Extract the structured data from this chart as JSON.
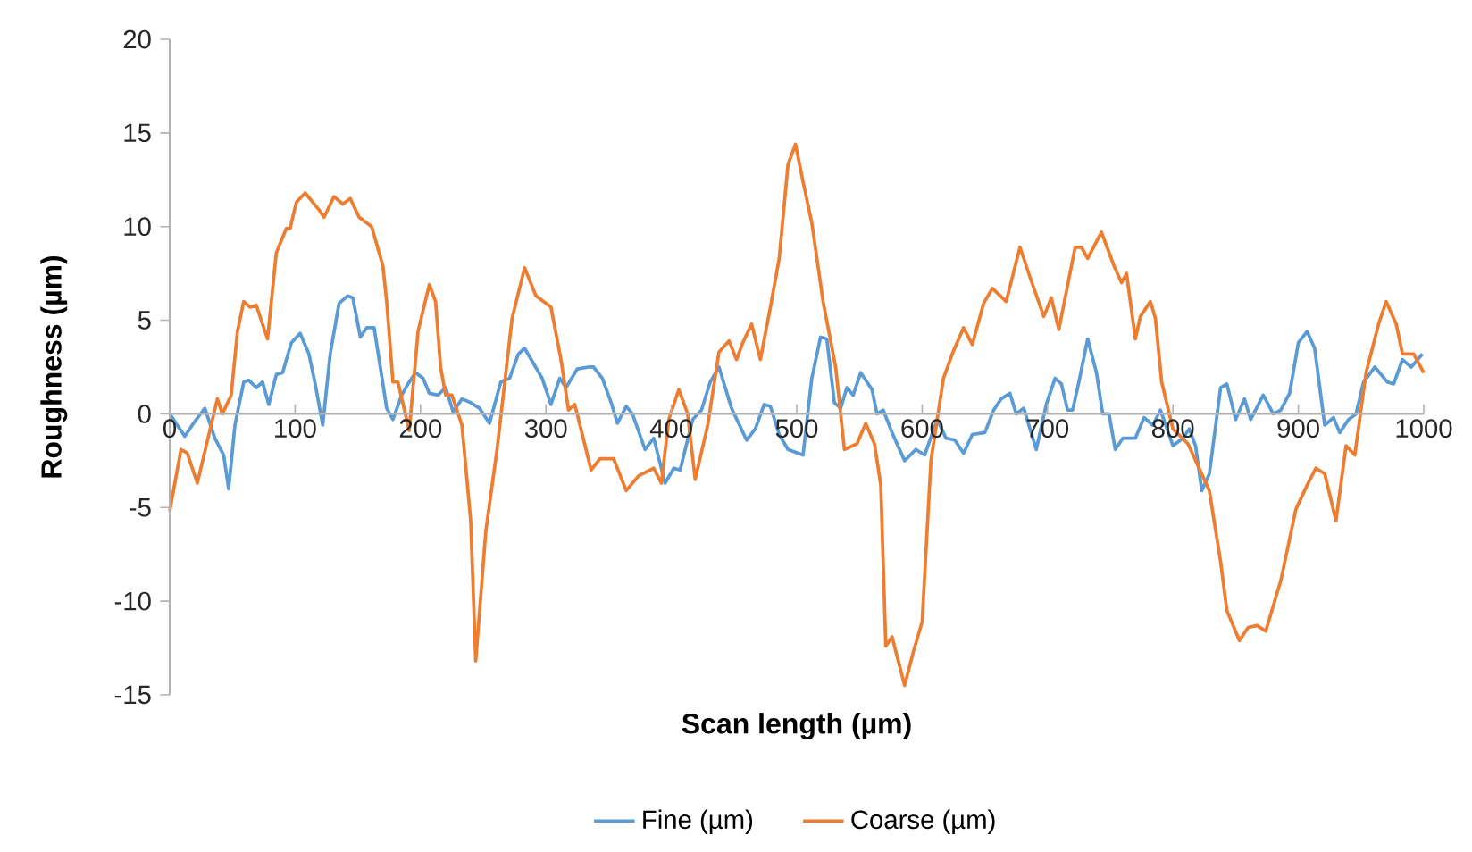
{
  "chart_data": {
    "type": "line",
    "xlabel": "Scan length (µm)",
    "ylabel": "Roughness (µm)",
    "xlim": [
      0,
      1000
    ],
    "ylim": [
      -15,
      20
    ],
    "xticks": [
      0,
      100,
      200,
      300,
      400,
      500,
      600,
      700,
      800,
      900,
      1000
    ],
    "yticks": [
      -15,
      -10,
      -5,
      0,
      5,
      10,
      15,
      20
    ],
    "grid": false,
    "legend": "bottom",
    "marker": "none",
    "line_style": "solid",
    "series": [
      {
        "name": "Fine (µm)",
        "color": "#5b9bd5",
        "x": [
          0,
          5,
          12,
          19,
          28,
          36,
          43,
          47,
          52,
          59,
          63,
          69,
          74,
          79,
          85,
          90,
          97,
          104,
          111,
          116,
          122,
          128,
          135,
          142,
          146,
          152,
          157,
          163,
          170,
          173,
          178,
          185,
          190,
          196,
          202,
          207,
          214,
          220,
          226,
          233,
          240,
          247,
          255,
          264,
          271,
          278,
          283,
          290,
          297,
          304,
          311,
          316,
          325,
          334,
          338,
          345,
          352,
          357,
          364,
          369,
          379,
          386,
          395,
          402,
          407,
          417,
          424,
          431,
          438,
          448,
          460,
          467,
          474,
          479,
          486,
          493,
          505,
          512,
          519,
          524,
          530,
          535,
          540,
          545,
          551,
          560,
          564,
          569,
          576,
          586,
          595,
          602,
          612,
          619,
          626,
          633,
          640,
          650,
          657,
          663,
          670,
          675,
          681,
          691,
          699,
          706,
          711,
          716,
          720,
          725,
          732,
          739,
          744,
          749,
          754,
          760,
          770,
          777,
          784,
          790,
          800,
          808,
          813,
          818,
          823,
          829,
          838,
          843,
          850,
          857,
          862,
          872,
          880,
          886,
          893,
          900,
          907,
          913,
          921,
          928,
          933,
          940,
          946,
          952,
          961,
          971,
          976,
          983,
          990,
          999
        ],
        "values": [
          0,
          -0.5,
          -1.2,
          -0.5,
          0.3,
          -1.3,
          -2.2,
          -4.0,
          -0.6,
          1.7,
          1.8,
          1.4,
          1.7,
          0.5,
          2.1,
          2.2,
          3.8,
          4.3,
          3.2,
          1.6,
          -0.6,
          3.2,
          5.9,
          6.3,
          6.2,
          4.1,
          4.6,
          4.6,
          1.6,
          0.3,
          -0.3,
          1.0,
          1.6,
          2.2,
          1.9,
          1.1,
          1.0,
          1.4,
          0.1,
          0.8,
          0.6,
          0.3,
          -0.5,
          1.7,
          1.9,
          3.2,
          3.5,
          2.7,
          1.9,
          0.5,
          1.9,
          1.4,
          2.4,
          2.5,
          2.5,
          1.9,
          0.6,
          -0.5,
          0.4,
          0,
          -1.9,
          -1.3,
          -3.7,
          -2.9,
          -3.0,
          -0.3,
          0.2,
          1.7,
          2.5,
          0.3,
          -1.4,
          -0.8,
          0.5,
          0.4,
          -1.1,
          -1.9,
          -2.2,
          1.9,
          4.1,
          4.0,
          0.6,
          0.3,
          1.4,
          1.0,
          2.2,
          1.3,
          0,
          0.2,
          -1.0,
          -2.5,
          -1.9,
          -2.2,
          -0.3,
          -1.3,
          -1.4,
          -2.1,
          -1.1,
          -1.0,
          0.2,
          0.8,
          1.1,
          0,
          0.3,
          -1.9,
          0.5,
          1.9,
          1.6,
          0.2,
          0.2,
          1.7,
          4.0,
          2.2,
          0,
          0,
          -1.9,
          -1.3,
          -1.3,
          -0.2,
          -0.6,
          0.2,
          -1.7,
          -1.3,
          -0.8,
          -1.7,
          -4.1,
          -3.2,
          1.4,
          1.6,
          -0.3,
          0.8,
          -0.3,
          1.0,
          0,
          0.2,
          1.1,
          3.8,
          4.4,
          3.5,
          -0.6,
          -0.2,
          -1.0,
          -0.3,
          0,
          1.7,
          2.5,
          1.7,
          1.6,
          2.9,
          2.5,
          3.2
        ]
      },
      {
        "name": "Coarse (µm)",
        "color": "#ed7d31",
        "x": [
          0,
          9,
          14,
          22,
          38,
          42,
          49,
          54,
          59,
          64,
          69,
          78,
          85,
          93,
          96,
          101,
          108,
          119,
          123,
          131,
          138,
          144,
          151,
          161,
          170,
          173,
          178,
          182,
          191,
          198,
          207,
          212,
          216,
          220,
          225,
          233,
          240,
          244,
          252,
          261,
          267,
          273,
          283,
          292,
          304,
          312,
          318,
          323,
          329,
          336,
          343,
          354,
          364,
          374,
          386,
          392,
          398,
          406,
          413,
          419,
          429,
          438,
          446,
          452,
          457,
          464,
          471,
          479,
          486,
          493,
          499,
          505,
          512,
          521,
          531,
          538,
          548,
          555,
          562,
          567,
          571,
          576,
          586,
          593,
          600,
          607,
          617,
          624,
          633,
          640,
          649,
          656,
          667,
          678,
          687,
          697,
          703,
          709,
          722,
          727,
          732,
          743,
          753,
          759,
          763,
          770,
          774,
          782,
          786,
          791,
          800,
          812,
          829,
          838,
          843,
          853,
          860,
          867,
          874,
          886,
          898,
          907,
          914,
          921,
          930,
          938,
          945,
          954,
          964,
          970,
          978,
          983,
          992,
          1000
        ],
        "values": [
          -5.2,
          -1.9,
          -2.1,
          -3.7,
          0.8,
          0,
          1,
          4.4,
          6.0,
          5.7,
          5.8,
          4.0,
          8.6,
          9.9,
          9.9,
          11.3,
          11.8,
          10.9,
          10.5,
          11.6,
          11.2,
          11.5,
          10.5,
          10.0,
          7.9,
          6.0,
          1.7,
          1.7,
          -0.9,
          4.4,
          6.9,
          6.0,
          2.5,
          1.0,
          1.0,
          -0.6,
          -5.7,
          -13.2,
          -6.3,
          -1.9,
          1.6,
          5.1,
          7.8,
          6.3,
          5.7,
          2.9,
          0.2,
          0.5,
          -1.1,
          -3.0,
          -2.4,
          -2.4,
          -4.1,
          -3.3,
          -2.9,
          -3.7,
          -0.3,
          1.3,
          0,
          -3.5,
          -0.6,
          3.3,
          3.9,
          2.9,
          3.8,
          4.8,
          2.9,
          5.7,
          8.3,
          13.3,
          14.4,
          12.4,
          10.2,
          6.0,
          2.5,
          -1.9,
          -1.6,
          -0.5,
          -1.6,
          -3.8,
          -12.4,
          -11.9,
          -14.5,
          -12.7,
          -11.1,
          -2.5,
          1.9,
          3.2,
          4.6,
          3.7,
          5.9,
          6.7,
          6.0,
          8.9,
          7.1,
          5.2,
          6.2,
          4.5,
          8.9,
          8.9,
          8.3,
          9.7,
          7.9,
          7.0,
          7.5,
          4.0,
          5.2,
          6.0,
          5.1,
          1.7,
          -0.8,
          -1.6,
          -4.1,
          -7.9,
          -10.5,
          -12.1,
          -11.4,
          -11.3,
          -11.6,
          -8.9,
          -5.1,
          -3.8,
          -2.9,
          -3.2,
          -5.7,
          -1.7,
          -2.2,
          2.2,
          4.8,
          6.0,
          4.8,
          3.2,
          3.2,
          2.2
        ]
      }
    ]
  }
}
